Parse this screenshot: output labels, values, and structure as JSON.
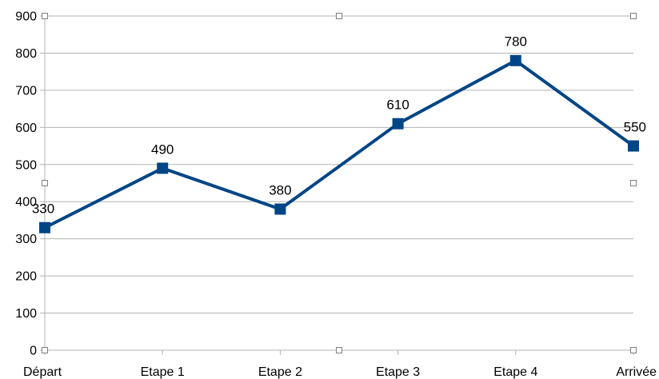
{
  "chart_data": {
    "type": "line",
    "title": "",
    "xlabel": "",
    "ylabel": "",
    "categories": [
      "Départ",
      "Etape 1",
      "Etape 2",
      "Etape 3",
      "Etape 4",
      "Arrivée"
    ],
    "series": [
      {
        "values": [
          330,
          490,
          380,
          610,
          780,
          550
        ]
      }
    ],
    "data_labels": [
      "330",
      "490",
      "380",
      "610",
      "780",
      "550"
    ],
    "ylim": [
      0,
      900
    ],
    "yticks": [
      0,
      100,
      200,
      300,
      400,
      500,
      600,
      700,
      800,
      900
    ],
    "ytick_labels": [
      "0",
      "100",
      "200",
      "300",
      "400",
      "500",
      "600",
      "700",
      "800",
      "900"
    ],
    "grid": true,
    "legend": "none",
    "colors": {
      "series": "#004586",
      "grid": "#b3b3b3",
      "text": "#000000"
    }
  }
}
